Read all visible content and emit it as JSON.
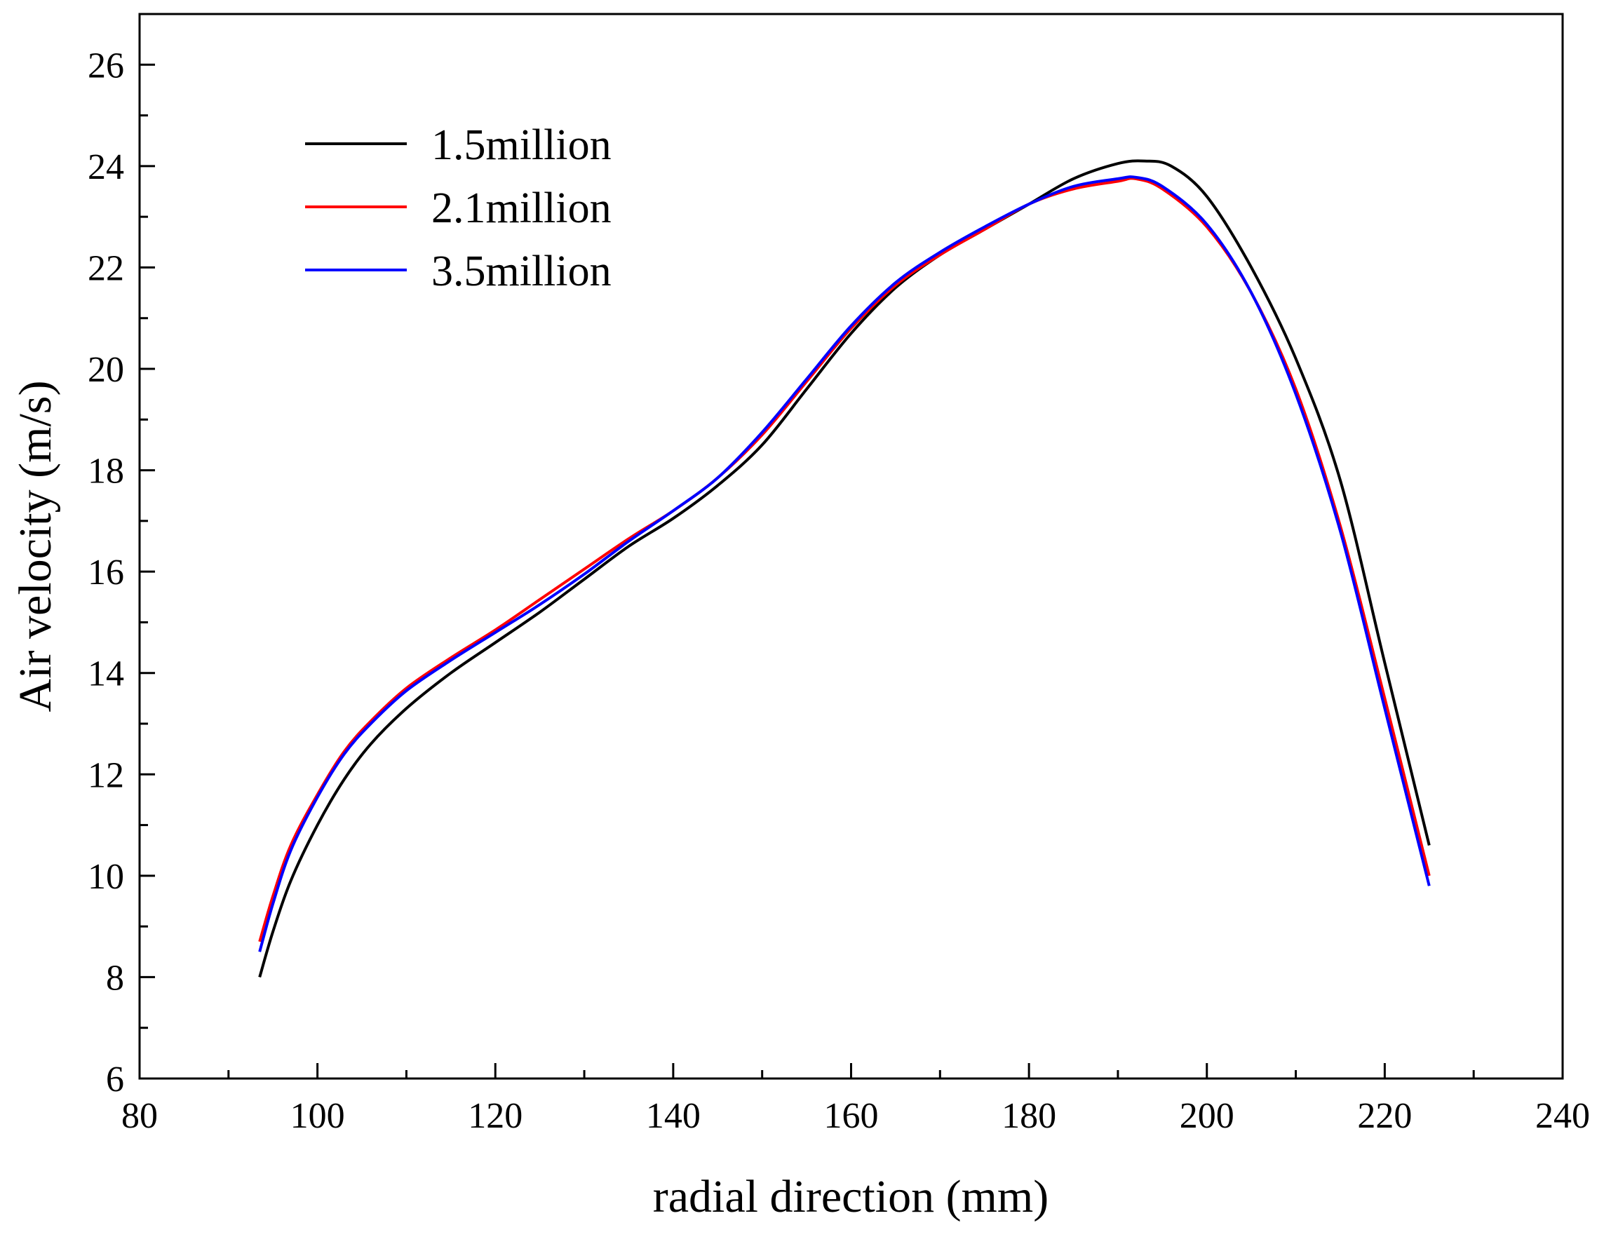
{
  "chart_data": {
    "type": "line",
    "title": "",
    "xlabel": "radial direction (mm)",
    "ylabel": "Air velocity (m/s)",
    "xlim": [
      80,
      240
    ],
    "ylim": [
      6,
      27
    ],
    "xticks": [
      80,
      100,
      120,
      140,
      160,
      180,
      200,
      220,
      240
    ],
    "yticks": [
      6,
      8,
      10,
      12,
      14,
      16,
      18,
      20,
      22,
      24,
      26
    ],
    "grid": false,
    "legend_position": "top-left",
    "series": [
      {
        "name": "1.5million",
        "color": "#000000",
        "x": [
          93.5,
          95,
          97,
          100,
          103,
          106,
          110,
          115,
          120,
          125,
          130,
          135,
          140,
          145,
          150,
          155,
          160,
          165,
          170,
          175,
          180,
          185,
          190,
          193,
          196,
          200,
          205,
          210,
          215,
          220,
          225
        ],
        "y": [
          8.0,
          8.9,
          9.9,
          11.0,
          11.9,
          12.6,
          13.3,
          14.0,
          14.6,
          15.2,
          15.85,
          16.5,
          17.05,
          17.7,
          18.5,
          19.6,
          20.7,
          21.6,
          22.25,
          22.75,
          23.25,
          23.75,
          24.05,
          24.1,
          24.0,
          23.4,
          22.0,
          20.2,
          17.8,
          14.2,
          10.6
        ]
      },
      {
        "name": "2.1million",
        "color": "#ff0000",
        "x": [
          93.5,
          95,
          97,
          100,
          103,
          106,
          110,
          115,
          120,
          125,
          130,
          135,
          140,
          145,
          150,
          155,
          160,
          165,
          170,
          175,
          180,
          185,
          190,
          192,
          195,
          200,
          205,
          210,
          215,
          220,
          225
        ],
        "y": [
          8.7,
          9.6,
          10.6,
          11.6,
          12.45,
          13.05,
          13.7,
          14.3,
          14.85,
          15.45,
          16.05,
          16.65,
          17.2,
          17.85,
          18.7,
          19.75,
          20.8,
          21.65,
          22.25,
          22.75,
          23.25,
          23.55,
          23.7,
          23.75,
          23.55,
          22.8,
          21.5,
          19.6,
          16.9,
          13.5,
          10.0
        ]
      },
      {
        "name": "3.5million",
        "color": "#0000ff",
        "x": [
          93.5,
          95,
          97,
          100,
          103,
          106,
          110,
          115,
          120,
          125,
          130,
          135,
          140,
          145,
          150,
          155,
          160,
          165,
          170,
          175,
          180,
          185,
          190,
          192,
          195,
          200,
          205,
          210,
          215,
          220,
          225
        ],
        "y": [
          8.5,
          9.45,
          10.5,
          11.55,
          12.4,
          13.0,
          13.65,
          14.25,
          14.8,
          15.35,
          15.95,
          16.6,
          17.2,
          17.85,
          18.75,
          19.8,
          20.85,
          21.7,
          22.3,
          22.8,
          23.25,
          23.6,
          23.75,
          23.78,
          23.6,
          22.85,
          21.5,
          19.5,
          16.8,
          13.3,
          9.8
        ]
      }
    ]
  }
}
